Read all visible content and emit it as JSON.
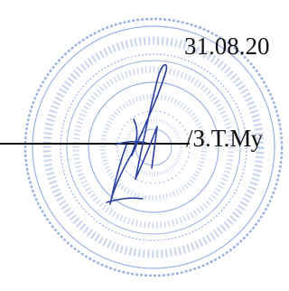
{
  "document": {
    "date": "31.08.20",
    "signatory_name": "/З.Т.Му"
  },
  "stamp": {
    "type": "round-seal",
    "ink_color": "#4a72c8"
  },
  "signature": {
    "ink_color": "#2a3fa0"
  }
}
